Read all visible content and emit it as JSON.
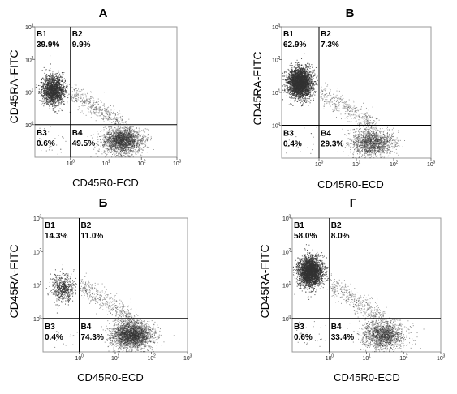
{
  "chart_data": [
    {
      "type": "scatter",
      "title": "А",
      "xlabel": "CD45R0-ECD",
      "ylabel": "CD45RA-FITC",
      "x_scale": "log",
      "y_scale": "log",
      "xlim": [
        0.1,
        1000
      ],
      "ylim": [
        0.1,
        1000
      ],
      "x_ticks": [
        "10",
        "10",
        "10",
        "10"
      ],
      "x_tick_exponents": [
        "0",
        "1",
        "2",
        "3"
      ],
      "y_ticks": [
        "10",
        "10",
        "10",
        "10"
      ],
      "y_tick_exponents": [
        "0",
        "1",
        "2",
        "3"
      ],
      "gate": {
        "x": 1,
        "y": 1
      },
      "quadrants": [
        {
          "name": "B1",
          "percent": "39.9%"
        },
        {
          "name": "B2",
          "percent": "9.9%"
        },
        {
          "name": "B3",
          "percent": "0.6%"
        },
        {
          "name": "B4",
          "percent": "49.5%"
        }
      ],
      "population_centers": [
        {
          "x": 0.32,
          "y": 12
        },
        {
          "x": 28,
          "y": 0.33
        }
      ],
      "color": "#333333"
    },
    {
      "type": "scatter",
      "title": "В",
      "xlabel": "CD45R0-ECD",
      "ylabel": "CD45RA-FITC",
      "x_scale": "log",
      "y_scale": "log",
      "xlim": [
        0.1,
        1000
      ],
      "ylim": [
        0.1,
        1000
      ],
      "x_ticks": [
        "10",
        "10",
        "10",
        "10"
      ],
      "x_tick_exponents": [
        "0",
        "1",
        "2",
        "3"
      ],
      "y_ticks": [
        "10",
        "10",
        "10",
        "10"
      ],
      "y_tick_exponents": [
        "0",
        "1",
        "2",
        "3"
      ],
      "gate": {
        "x": 1,
        "y": 1
      },
      "quadrants": [
        {
          "name": "B1",
          "percent": "62.9%"
        },
        {
          "name": "B2",
          "percent": "7.3%"
        },
        {
          "name": "B3",
          "percent": "0.4%"
        },
        {
          "name": "B4",
          "percent": "29.3%"
        }
      ],
      "population_centers": [
        {
          "x": 0.3,
          "y": 20
        },
        {
          "x": 25,
          "y": 0.3
        }
      ],
      "color": "#333333"
    },
    {
      "type": "scatter",
      "title": "Б",
      "xlabel": "CD45R0-ECD",
      "ylabel": "CD45RA-FITC",
      "x_scale": "log",
      "y_scale": "log",
      "xlim": [
        0.1,
        1000
      ],
      "ylim": [
        0.1,
        1000
      ],
      "x_ticks": [
        "10",
        "10",
        "10",
        "10"
      ],
      "x_tick_exponents": [
        "0",
        "1",
        "2",
        "3"
      ],
      "y_ticks": [
        "10",
        "10",
        "10",
        "10"
      ],
      "y_tick_exponents": [
        "0",
        "1",
        "2",
        "3"
      ],
      "gate": {
        "x": 1,
        "y": 1
      },
      "quadrants": [
        {
          "name": "B1",
          "percent": "14.3%"
        },
        {
          "name": "B2",
          "percent": "11.0%"
        },
        {
          "name": "B3",
          "percent": "0.4%"
        },
        {
          "name": "B4",
          "percent": "74.3%"
        }
      ],
      "population_centers": [
        {
          "x": 0.35,
          "y": 8
        },
        {
          "x": 28,
          "y": 0.33
        }
      ],
      "color": "#333333"
    },
    {
      "type": "scatter",
      "title": "Г",
      "xlabel": "CD45R0-ECD",
      "ylabel": "CD45RA-FITC",
      "x_scale": "log",
      "y_scale": "log",
      "xlim": [
        0.1,
        1000
      ],
      "ylim": [
        0.1,
        1000
      ],
      "x_ticks": [
        "10",
        "10",
        "10",
        "10"
      ],
      "x_tick_exponents": [
        "0",
        "1",
        "2",
        "3"
      ],
      "y_ticks": [
        "10",
        "10",
        "10",
        "10"
      ],
      "y_tick_exponents": [
        "0",
        "1",
        "2",
        "3"
      ],
      "gate": {
        "x": 1,
        "y": 1
      },
      "quadrants": [
        {
          "name": "B1",
          "percent": "58.0%"
        },
        {
          "name": "B2",
          "percent": "8.0%"
        },
        {
          "name": "B3",
          "percent": "0.6%"
        },
        {
          "name": "B4",
          "percent": "33.4%"
        }
      ],
      "population_centers": [
        {
          "x": 0.3,
          "y": 25
        },
        {
          "x": 28,
          "y": 0.33
        }
      ],
      "color": "#333333"
    }
  ]
}
